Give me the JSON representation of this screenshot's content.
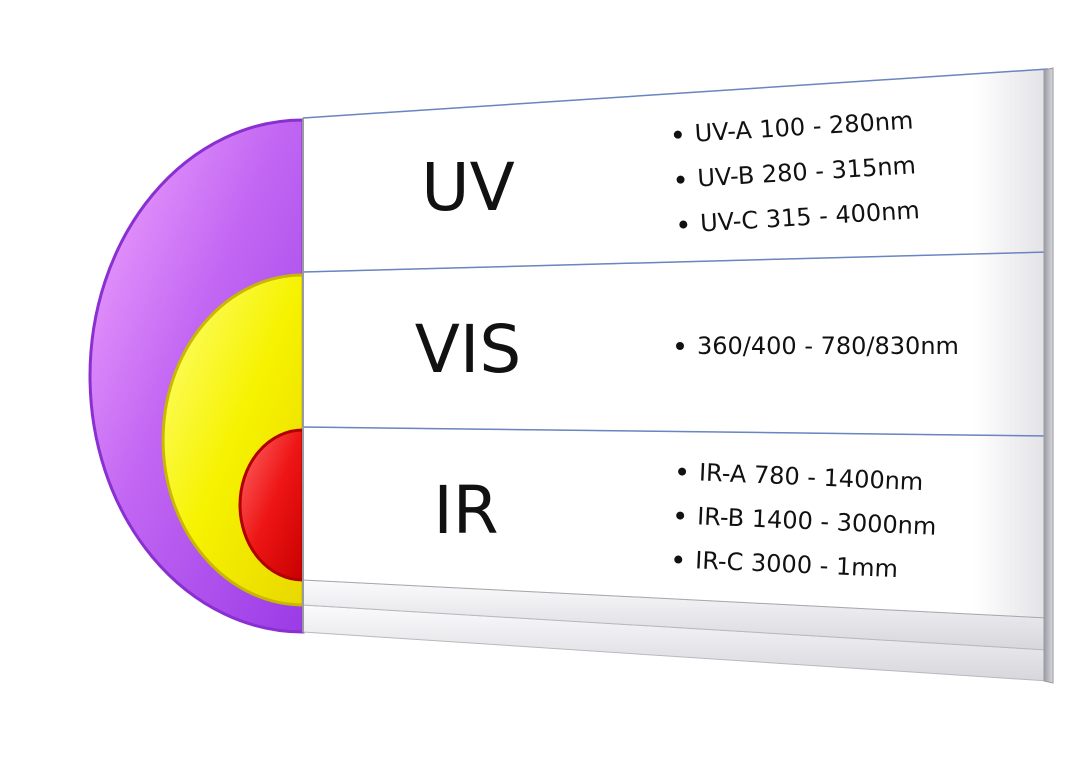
{
  "bands": [
    {
      "label": "UV",
      "color": "#b044ee",
      "items": [
        "UV-A 100 - 280nm",
        "UV-B 280 - 315nm",
        "UV-C 315 - 400nm"
      ]
    },
    {
      "label": "VIS",
      "color": "#f4f000",
      "items": [
        "360/400 - 780/830nm"
      ]
    },
    {
      "label": "IR",
      "color": "#e81010",
      "items": [
        "IR-A 780 - 1400nm",
        "IR-B 1400 - 3000nm",
        "IR-C 3000 - 1mm"
      ]
    }
  ]
}
